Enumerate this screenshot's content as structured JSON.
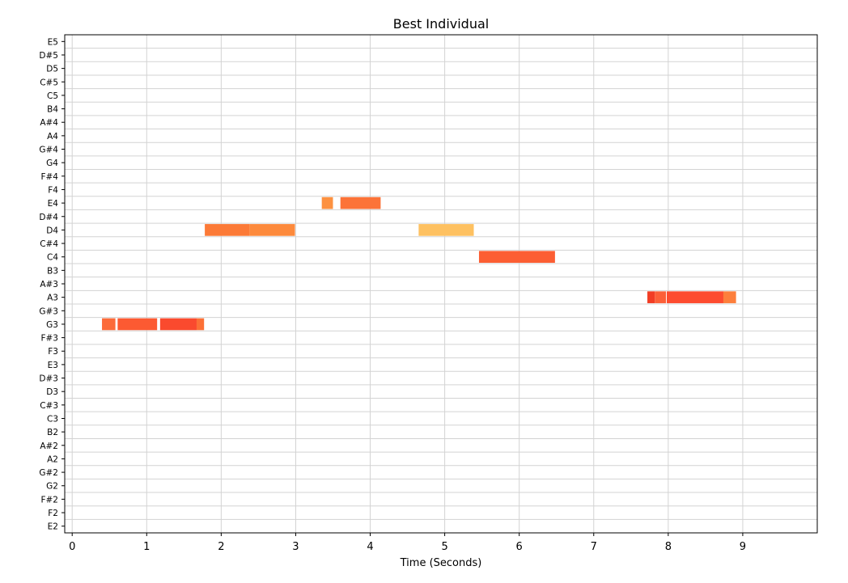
{
  "chart_data": {
    "type": "piano-roll",
    "title": "Best Individual",
    "xlabel": "Time (Seconds)",
    "ylabel": "",
    "xlim": [
      -0.1,
      10.0
    ],
    "x_ticks": [
      "0",
      "1",
      "2",
      "3",
      "4",
      "5",
      "6",
      "7",
      "8",
      "9"
    ],
    "pitches": [
      "E5",
      "D#5",
      "D5",
      "C#5",
      "C5",
      "B4",
      "A#4",
      "A4",
      "G#4",
      "G4",
      "F#4",
      "F4",
      "E4",
      "D#4",
      "D4",
      "C#4",
      "C4",
      "B3",
      "A#3",
      "A3",
      "G#3",
      "G3",
      "F#3",
      "F3",
      "E3",
      "D#3",
      "D3",
      "C#3",
      "C3",
      "B2",
      "A#2",
      "A2",
      "G#2",
      "G2",
      "F#2",
      "F2",
      "E2"
    ],
    "grid": true,
    "notes": [
      {
        "pitch": "G3",
        "start": 0.4,
        "end": 0.58,
        "color": "#fc6b3a"
      },
      {
        "pitch": "G3",
        "start": 0.61,
        "end": 1.14,
        "color": "#fc5a32"
      },
      {
        "pitch": "G3",
        "start": 1.18,
        "end": 1.67,
        "color": "#fa4a2e"
      },
      {
        "pitch": "G3",
        "start": 1.67,
        "end": 1.77,
        "color": "#fc7036"
      },
      {
        "pitch": "D4",
        "start": 1.78,
        "end": 2.38,
        "color": "#fc7a37"
      },
      {
        "pitch": "D4",
        "start": 2.38,
        "end": 2.99,
        "color": "#fd8a3c"
      },
      {
        "pitch": "E4",
        "start": 3.35,
        "end": 3.5,
        "color": "#fd9140"
      },
      {
        "pitch": "E4",
        "start": 3.6,
        "end": 4.14,
        "color": "#fc7338"
      },
      {
        "pitch": "D4",
        "start": 4.65,
        "end": 5.39,
        "color": "#fec161"
      },
      {
        "pitch": "C4",
        "start": 5.46,
        "end": 6.48,
        "color": "#fc5e33"
      },
      {
        "pitch": "A3",
        "start": 7.72,
        "end": 7.82,
        "color": "#f23d24"
      },
      {
        "pitch": "A3",
        "start": 7.82,
        "end": 7.97,
        "color": "#fc6038"
      },
      {
        "pitch": "A3",
        "start": 7.98,
        "end": 8.74,
        "color": "#fd4c2f"
      },
      {
        "pitch": "A3",
        "start": 8.74,
        "end": 8.91,
        "color": "#fd7f3c"
      }
    ]
  }
}
